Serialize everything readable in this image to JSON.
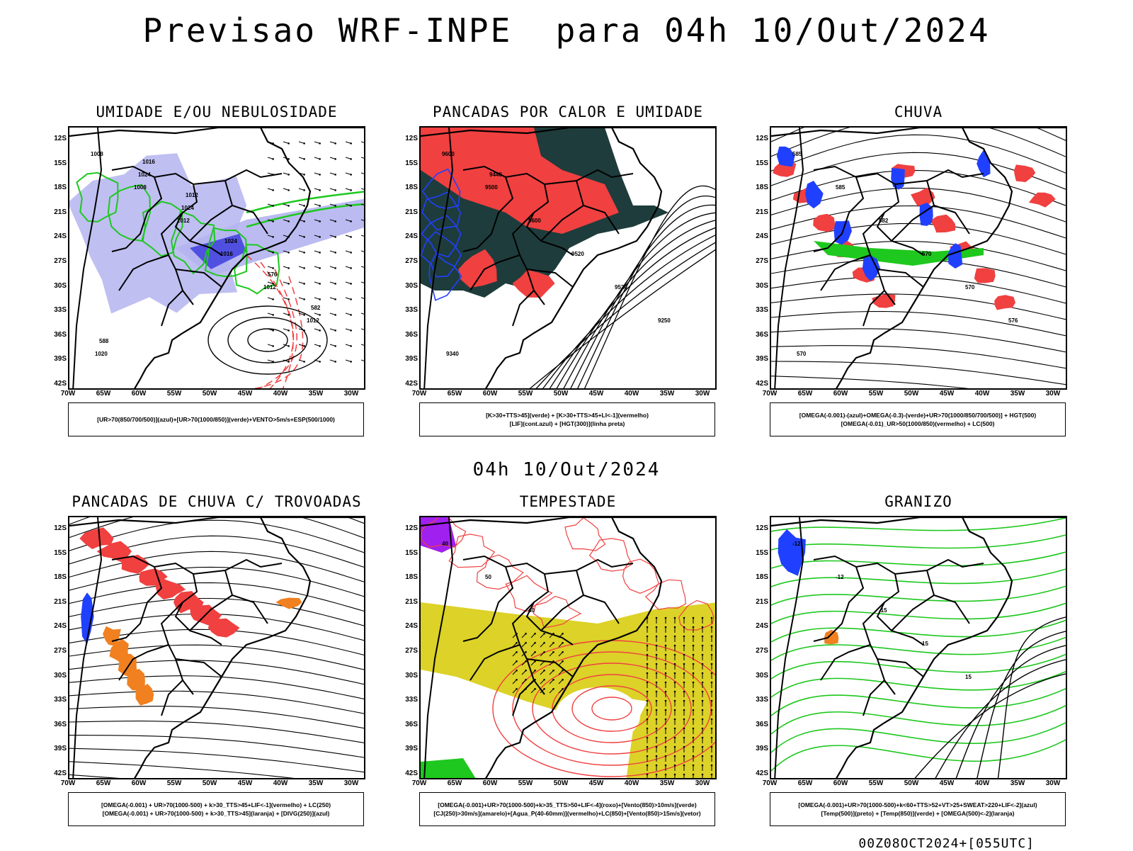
{
  "header": {
    "title": "Previsao WRF-INPE  para 04h 10/Out/2024"
  },
  "middle": {
    "title": "04h 10/Out/2024"
  },
  "axes": {
    "lat_labels": [
      "12S",
      "15S",
      "18S",
      "21S",
      "24S",
      "27S",
      "30S",
      "33S",
      "36S",
      "39S",
      "42S"
    ],
    "lon_labels": [
      "70W",
      "65W",
      "60W",
      "55W",
      "50W",
      "45W",
      "40W",
      "35W",
      "30W"
    ]
  },
  "panels": [
    {
      "title": "UMIDADE E/OU NEBULOSIDADE",
      "legend": [
        "[UR>70(850/700/500)](azul)+[UR>70(1000/850)](verde)+VENTO>5m/s+ESP(500/1000)"
      ],
      "labels": [
        "1008",
        "1008",
        "1012",
        "1016",
        "1012",
        "1012",
        "1020",
        "1024",
        "1024",
        "1024",
        "576",
        "582",
        "588",
        "1016",
        "1012"
      ]
    },
    {
      "title": "PANCADAS POR CALOR E UMIDADE",
      "legend": [
        "[K>30+TTS>45](verde) + [K>30+TTS>45+LI<-1](vermelho)",
        "[LIF](cont.azul) + [HGT(300)](linha preta)"
      ],
      "labels": [
        "9600",
        "9500",
        "9600",
        "9520",
        "9520",
        "9250",
        "9340",
        "9440"
      ]
    },
    {
      "title": "CHUVA",
      "legend": [
        "[OMEGA(-0.001)-(azul)+OMEGA(-0.3)-(verde)+UR>70(1000/850/700/500)] + HGT(500)",
        "[OMEGA(-0.01)_UR>50(1000/850)(vermelho) + LC(500)"
      ],
      "labels": [
        "585",
        "585",
        "582",
        "570",
        "570",
        "576",
        "570"
      ]
    },
    {
      "title": "PANCADAS DE CHUVA C/ TROVOADAS",
      "legend": [
        "[OMEGA(-0.001) + UR>70(1000-500) + k>30_TTS>45+LIF<-1](vermelho) + LC(250)",
        "[OMEGA(-0.001) + UR>70(1000-500) + k>30_TTS>45](laranja) + [DIVG(250)](azul)"
      ],
      "labels": []
    },
    {
      "title": "TEMPESTADE",
      "legend": [
        "[OMEGA(-0.001)+UR>70(1000-500)+k>35_TTS>50+LIF<-4](roxo)+[Vento(850)>10m/s](verde)",
        "[CJ(250)>30m/s](amarelo)+[Agua_P(40-60mm)](vermelho)+LC(850)+[Vento(850)>15m/s](vetor)"
      ],
      "labels": [
        "40",
        "50",
        "40"
      ]
    },
    {
      "title": "GRANIZO",
      "legend": [
        "[OMEGA(-0.001)+UR>70(1000-500)+k<60+TTS>52+VT>25+SWEAT>220+LIF<-2](azul)",
        "[Temp(500)](preto) + [Temp(850)](verde) + [OMEGA(500)<-2](laranja)"
      ],
      "labels": [
        "-12",
        "-12",
        "-15",
        "15",
        "15"
      ]
    }
  ],
  "footer": {
    "stamp": "00Z08OCT2024+[055UTC]"
  },
  "colors": {
    "red": "#f04040",
    "green": "#1ec81e",
    "blue": "#2040ff",
    "lavender": "#b4b4f0",
    "darkgreen": "#1e3c3c",
    "yellow": "#dcd228",
    "purple": "#a020f0",
    "orange": "#f08020"
  }
}
